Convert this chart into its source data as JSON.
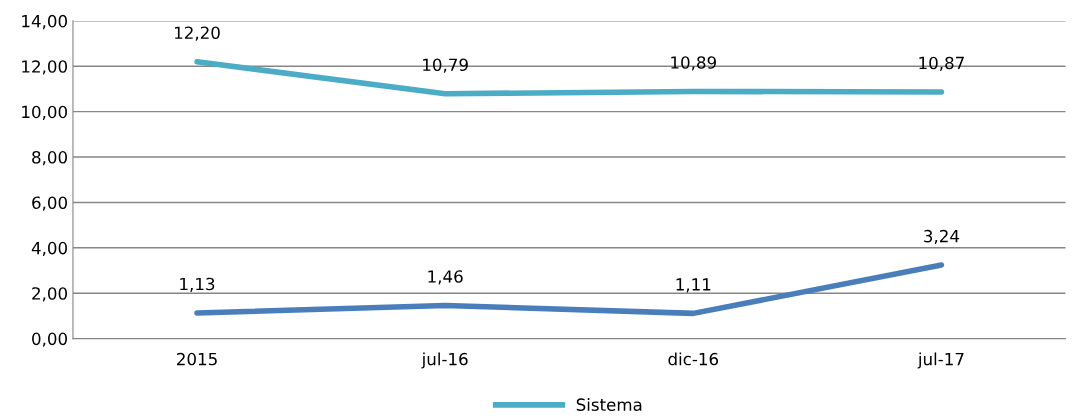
{
  "chart_data": {
    "type": "line",
    "categories": [
      "2015",
      "jul-16",
      "dic-16",
      "jul-17"
    ],
    "series": [
      {
        "color": "#4a7ebb",
        "values": [
          1.13,
          1.46,
          1.11,
          3.24
        ],
        "value_labels": [
          "1,13",
          "1,46",
          "1,11",
          "3,24"
        ]
      },
      {
        "name": "Sistema",
        "color": "#4bacc6",
        "values": [
          12.2,
          10.79,
          10.89,
          10.87
        ],
        "value_labels": [
          "12,20",
          "10,79",
          "10,89",
          "10,87"
        ]
      }
    ],
    "ylim": [
      0,
      14
    ],
    "yticks": [
      {
        "value": 0,
        "label": "0,00"
      },
      {
        "value": 2,
        "label": "2,00"
      },
      {
        "value": 4,
        "label": "4,00"
      },
      {
        "value": 6,
        "label": "6,00"
      },
      {
        "value": 8,
        "label": "8,00"
      },
      {
        "value": 10,
        "label": "10,00"
      },
      {
        "value": 12,
        "label": "12,00"
      },
      {
        "value": 14,
        "label": "14,00"
      }
    ],
    "grid": "y",
    "legend": "bottom",
    "marker": "none",
    "line_style": "solid"
  }
}
